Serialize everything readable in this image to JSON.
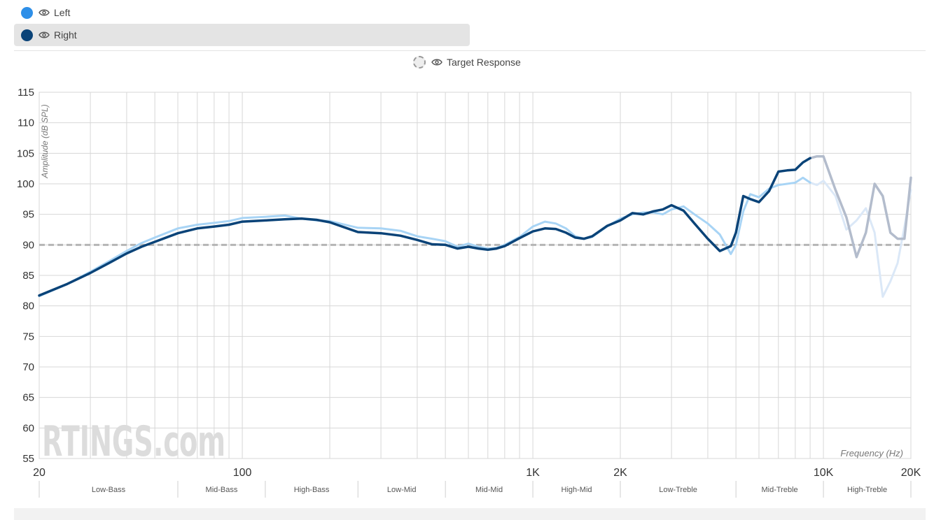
{
  "legend": {
    "left": {
      "label": "Left",
      "color": "#2e8fe8"
    },
    "right": {
      "label": "Right",
      "color": "#0a4378"
    },
    "target": {
      "label": "Target Response"
    }
  },
  "icons": {
    "eye": "eye-icon"
  },
  "chart_data": {
    "type": "line",
    "ylabel": "Amplitude (dB SPL)",
    "xlabel": "Frequency (Hz)",
    "xscale": "log",
    "xlim": [
      20,
      20000
    ],
    "ylim": [
      55,
      115
    ],
    "x_ticks": [
      {
        "value": 20,
        "label": "20"
      },
      {
        "value": 100,
        "label": "100"
      },
      {
        "value": 1000,
        "label": "1K"
      },
      {
        "value": 2000,
        "label": "2K"
      },
      {
        "value": 10000,
        "label": "10K"
      },
      {
        "value": 20000,
        "label": "20K"
      }
    ],
    "y_ticks": [
      55,
      60,
      65,
      70,
      75,
      80,
      85,
      90,
      95,
      100,
      105,
      110,
      115
    ],
    "target_level": 90,
    "bands": [
      {
        "label": "Low-Bass",
        "from": 20,
        "to": 60
      },
      {
        "label": "Mid-Bass",
        "from": 60,
        "to": 120
      },
      {
        "label": "High-Bass",
        "from": 120,
        "to": 250
      },
      {
        "label": "Low-Mid",
        "from": 250,
        "to": 500
      },
      {
        "label": "Mid-Mid",
        "from": 500,
        "to": 1000
      },
      {
        "label": "High-Mid",
        "from": 1000,
        "to": 2000
      },
      {
        "label": "Low-Treble",
        "from": 2000,
        "to": 5000
      },
      {
        "label": "Mid-Treble",
        "from": 5000,
        "to": 10000
      },
      {
        "label": "High-Treble",
        "from": 10000,
        "to": 20000
      }
    ],
    "watermark": "RTINGS.com",
    "series": [
      {
        "name": "Left",
        "color": "#a8d4f5",
        "faded_color": "#dbe8f7",
        "cutoff": 9000,
        "x": [
          20,
          25,
          30,
          35,
          40,
          45,
          50,
          60,
          70,
          80,
          90,
          100,
          120,
          140,
          160,
          180,
          200,
          250,
          300,
          350,
          400,
          450,
          500,
          550,
          600,
          650,
          700,
          750,
          800,
          900,
          1000,
          1100,
          1200,
          1300,
          1400,
          1500,
          1600,
          1800,
          2000,
          2200,
          2400,
          2600,
          2800,
          3000,
          3300,
          3600,
          4000,
          4400,
          4800,
          5000,
          5300,
          5600,
          6000,
          6500,
          7000,
          7500,
          8000,
          8500,
          9000,
          9500,
          10000,
          11000,
          12000,
          13000,
          14000,
          15000,
          16000,
          17000,
          18000,
          19000,
          20000
        ],
        "y": [
          81.6,
          83.6,
          85.6,
          87.4,
          89.0,
          90.3,
          91.2,
          92.7,
          93.3,
          93.6,
          93.9,
          94.4,
          94.6,
          94.8,
          94.3,
          94.0,
          93.9,
          92.8,
          92.7,
          92.3,
          91.4,
          91.0,
          90.6,
          89.7,
          90.2,
          89.7,
          89.4,
          89.5,
          90.0,
          91.3,
          93.0,
          93.8,
          93.5,
          92.7,
          91.4,
          91.0,
          91.3,
          93.0,
          94.3,
          95.0,
          95.3,
          95.3,
          95.0,
          95.8,
          96.3,
          95.0,
          93.5,
          91.7,
          88.5,
          90.0,
          95.5,
          98.3,
          97.8,
          99.2,
          99.8,
          100.0,
          100.2,
          101.0,
          100.2,
          99.8,
          100.5,
          98.0,
          92.5,
          94.0,
          96.0,
          92.0,
          81.5,
          84.0,
          87.0,
          93.0,
          99.0
        ]
      },
      {
        "name": "Right",
        "color": "#0a4378",
        "faded_color": "#b3bccc",
        "cutoff": 9000,
        "x": [
          20,
          25,
          30,
          35,
          40,
          45,
          50,
          60,
          70,
          80,
          90,
          100,
          120,
          140,
          160,
          180,
          200,
          250,
          300,
          350,
          400,
          450,
          500,
          550,
          600,
          650,
          700,
          750,
          800,
          900,
          1000,
          1100,
          1200,
          1300,
          1400,
          1500,
          1600,
          1800,
          2000,
          2200,
          2400,
          2600,
          2800,
          3000,
          3300,
          3600,
          4000,
          4400,
          4800,
          5000,
          5300,
          5600,
          6000,
          6500,
          7000,
          7500,
          8000,
          8500,
          9000,
          9500,
          10000,
          11000,
          12000,
          13000,
          14000,
          15000,
          16000,
          17000,
          18000,
          19000,
          20000
        ],
        "y": [
          81.7,
          83.6,
          85.4,
          87.1,
          88.6,
          89.7,
          90.5,
          91.9,
          92.7,
          93.0,
          93.3,
          93.8,
          94.0,
          94.2,
          94.3,
          94.1,
          93.7,
          92.1,
          91.9,
          91.5,
          90.8,
          90.1,
          90.0,
          89.4,
          89.7,
          89.4,
          89.2,
          89.4,
          89.8,
          91.1,
          92.2,
          92.7,
          92.6,
          92.0,
          91.2,
          91.0,
          91.4,
          93.1,
          94.0,
          95.2,
          95.0,
          95.5,
          95.8,
          96.5,
          95.6,
          93.5,
          91.0,
          89.0,
          89.8,
          92.0,
          98.0,
          97.5,
          97.0,
          98.8,
          102.0,
          102.2,
          102.3,
          103.5,
          104.2,
          104.5,
          104.5,
          99.0,
          94.5,
          88.0,
          92.0,
          100.0,
          98.0,
          92.0,
          91.0,
          91.0,
          101.0
        ]
      }
    ]
  }
}
